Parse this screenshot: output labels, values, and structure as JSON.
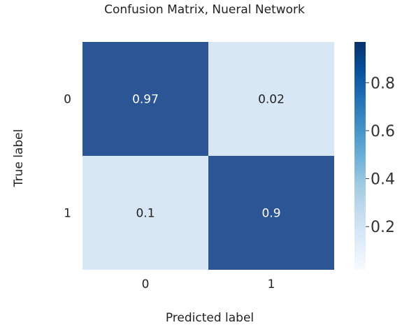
{
  "chart_data": {
    "type": "heatmap",
    "title": "Confusion Matrix, Nueral Network",
    "xlabel": "Predicted label",
    "ylabel": "True label",
    "x_categories": [
      "0",
      "1"
    ],
    "y_categories": [
      "0",
      "1"
    ],
    "values": [
      [
        0.97,
        0.02
      ],
      [
        0.1,
        0.9
      ]
    ],
    "colorbar": {
      "range": [
        0.02,
        0.97
      ],
      "ticks": [
        0.2,
        0.4,
        0.6,
        0.8
      ],
      "tick_labels": [
        "0.2",
        "0.4",
        "0.6",
        "0.8"
      ],
      "colormap": "Blues"
    },
    "colors": {
      "dark": "#08306b",
      "light": "#f7fbff",
      "text_dark_cell": "#ffffff",
      "text_light_cell": "#222222"
    }
  }
}
